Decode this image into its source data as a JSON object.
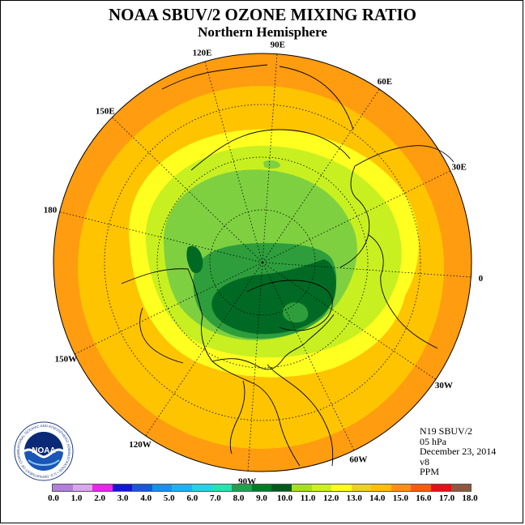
{
  "header": {
    "title": "NOAA SBUV/2 OZONE MIXING RATIO",
    "subtitle": "Northern Hemisphere"
  },
  "info": {
    "satellite": "N19 SBUV/2",
    "level": "05 hPa",
    "date": "December 23, 2014",
    "version": "v8",
    "units": "PPM"
  },
  "map": {
    "projection": "north polar stereographic",
    "longitude_labels": [
      "90E",
      "60E",
      "30E",
      "0",
      "30W",
      "60W",
      "90W",
      "120W",
      "150W",
      "180",
      "150E",
      "120E"
    ]
  },
  "colorbar": {
    "labels": [
      "0.0",
      "1.0",
      "2.0",
      "3.0",
      "4.0",
      "5.0",
      "6.0",
      "7.0",
      "8.0",
      "9.0",
      "10.0",
      "11.0",
      "12.0",
      "13.0",
      "14.0",
      "15.0",
      "16.0",
      "17.0",
      "18.0"
    ],
    "colors": [
      "#b27fdb",
      "#d9a6f0",
      "#ee22ee",
      "#1515d8",
      "#1a55e0",
      "#1a8fee",
      "#1ab5f0",
      "#22d4e8",
      "#22e6b0",
      "#22a050",
      "#007a28",
      "#005a1c",
      "#a6e01a",
      "#ccf21a",
      "#ffff1a",
      "#f0d020",
      "#ffc000",
      "#ff9010",
      "#ff5a10",
      "#e81010",
      "#8b5a3c"
    ]
  },
  "logo": {
    "text": "NOAA",
    "ring_text": "NATIONAL OCEANIC AND ATMOSPHERIC ADMINISTRATION • U.S. DEPARTMENT OF COMMERCE"
  }
}
